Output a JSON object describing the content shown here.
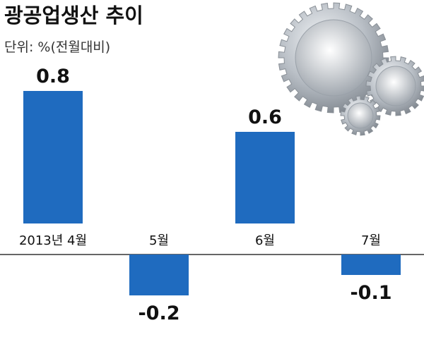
{
  "title": "광공업생산 추이",
  "unit_label": "단위: %(전월대비)",
  "colors": {
    "bar": "#1f6bbf",
    "text": "#111111",
    "axis": "#333333",
    "background": "#ffffff"
  },
  "decoration": {
    "icon": "gears-icon"
  },
  "chart_data": {
    "type": "bar",
    "categories": [
      "2013년 4월",
      "5월",
      "6월",
      "7월"
    ],
    "values": [
      0.8,
      -0.2,
      0.6,
      -0.1
    ],
    "value_labels": [
      "0.8",
      "-0.2",
      "0.6",
      "-0.1"
    ],
    "title": "광공업생산 추이",
    "ylabel": "",
    "xlabel": "",
    "ylim": [
      -0.2,
      0.8
    ],
    "grid": false,
    "legend": "none"
  }
}
